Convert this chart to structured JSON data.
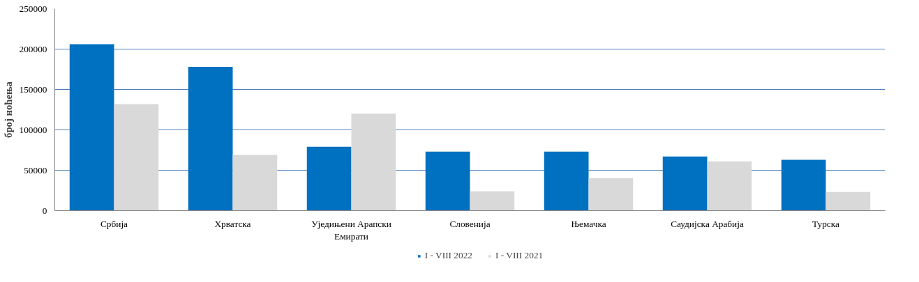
{
  "chart_data": {
    "type": "bar",
    "ylabel": "број ноћења",
    "categories": [
      "Србија",
      "Хрватска",
      "Уједињени Арапски Емирати",
      "Словенија",
      "Њемачка",
      "Саудијска Арабија",
      "Турска"
    ],
    "series": [
      {
        "name": "I - VIII 2022",
        "color": "#0070c0",
        "values": [
          206000,
          178000,
          79000,
          73000,
          73000,
          67000,
          63000
        ]
      },
      {
        "name": "I - VIII 2021",
        "color": "#d9d9d9",
        "values": [
          132000,
          69000,
          120000,
          24000,
          40000,
          61000,
          23000
        ]
      }
    ],
    "ylim": [
      0,
      250000
    ],
    "yticks": [
      0,
      50000,
      100000,
      150000,
      200000,
      250000
    ],
    "grid": "y",
    "legend": "bottom"
  }
}
